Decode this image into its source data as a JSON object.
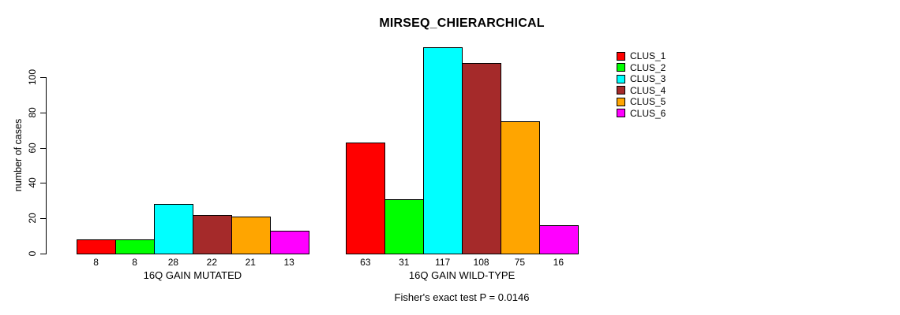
{
  "chart_data": {
    "type": "bar",
    "title": "MIRSEQ_CHIERARCHICAL",
    "ylabel": "number of cases",
    "xlabel": "",
    "annotation": "Fisher's exact test P = 0.0146",
    "categories": [
      "16Q GAIN MUTATED",
      "16Q GAIN WILD-TYPE"
    ],
    "series": [
      {
        "name": "CLUS_1",
        "color": "#FF0000",
        "values": [
          8,
          63
        ]
      },
      {
        "name": "CLUS_2",
        "color": "#00FF00",
        "values": [
          8,
          31
        ]
      },
      {
        "name": "CLUS_3",
        "color": "#00FFFF",
        "values": [
          28,
          117
        ]
      },
      {
        "name": "CLUS_4",
        "color": "#A52A2A",
        "values": [
          22,
          108
        ]
      },
      {
        "name": "CLUS_5",
        "color": "#FFA500",
        "values": [
          21,
          75
        ]
      },
      {
        "name": "CLUS_6",
        "color": "#FF00FF",
        "values": [
          13,
          16
        ]
      }
    ],
    "yticks": [
      0,
      20,
      40,
      60,
      80,
      100
    ],
    "ylim": [
      0,
      117
    ],
    "grid": false,
    "legend_position": "right",
    "bar_value_labels_shown": true,
    "axis_color": "#000000",
    "background_color": "#FFFFFF"
  }
}
